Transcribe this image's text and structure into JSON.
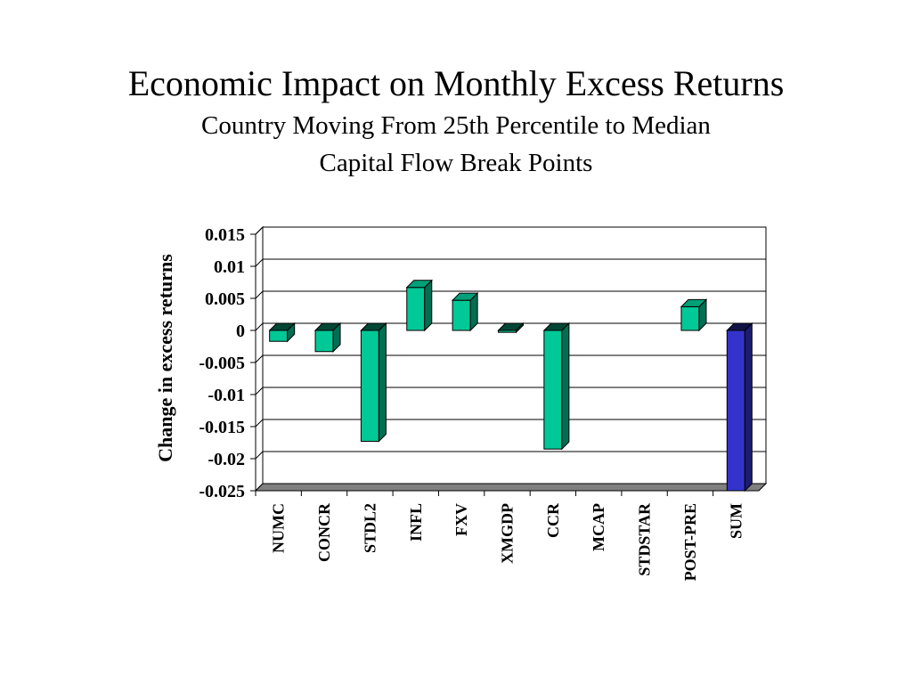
{
  "slide": {
    "title": "Economic Impact on Monthly Excess Returns",
    "subtitle_line1": "Country Moving From 25th Percentile to Median",
    "subtitle_line2": "Capital Flow Break Points"
  },
  "colors": {
    "bar_default": "#00C896",
    "bar_highlight": "#3333CC",
    "grid": "#000000",
    "floor": "#808080"
  },
  "chart_data": {
    "type": "bar",
    "title": "",
    "xlabel": "",
    "ylabel": "Change in excess returns",
    "ylim": [
      -0.025,
      0.015
    ],
    "y_ticks": [
      "0.015",
      "0.01",
      "0.005",
      "0",
      "-0.005",
      "-0.01",
      "-0.015",
      "-0.02",
      "-0.025"
    ],
    "y_tick_values": [
      0.015,
      0.01,
      0.005,
      0,
      -0.005,
      -0.01,
      -0.015,
      -0.02,
      -0.025
    ],
    "grid": true,
    "categories": [
      "NUMC",
      "CONCR",
      "STDL2",
      "INFL",
      "FXV",
      "XMGDP",
      "CCR",
      "MCAP",
      "STDSTAR",
      "POST-PRE",
      "SUM"
    ],
    "values": [
      -0.0017,
      -0.0033,
      -0.0173,
      0.0067,
      0.0047,
      -0.0003,
      -0.0185,
      0,
      0,
      0.0037,
      -0.025
    ],
    "highlight": [
      "SUM"
    ]
  }
}
